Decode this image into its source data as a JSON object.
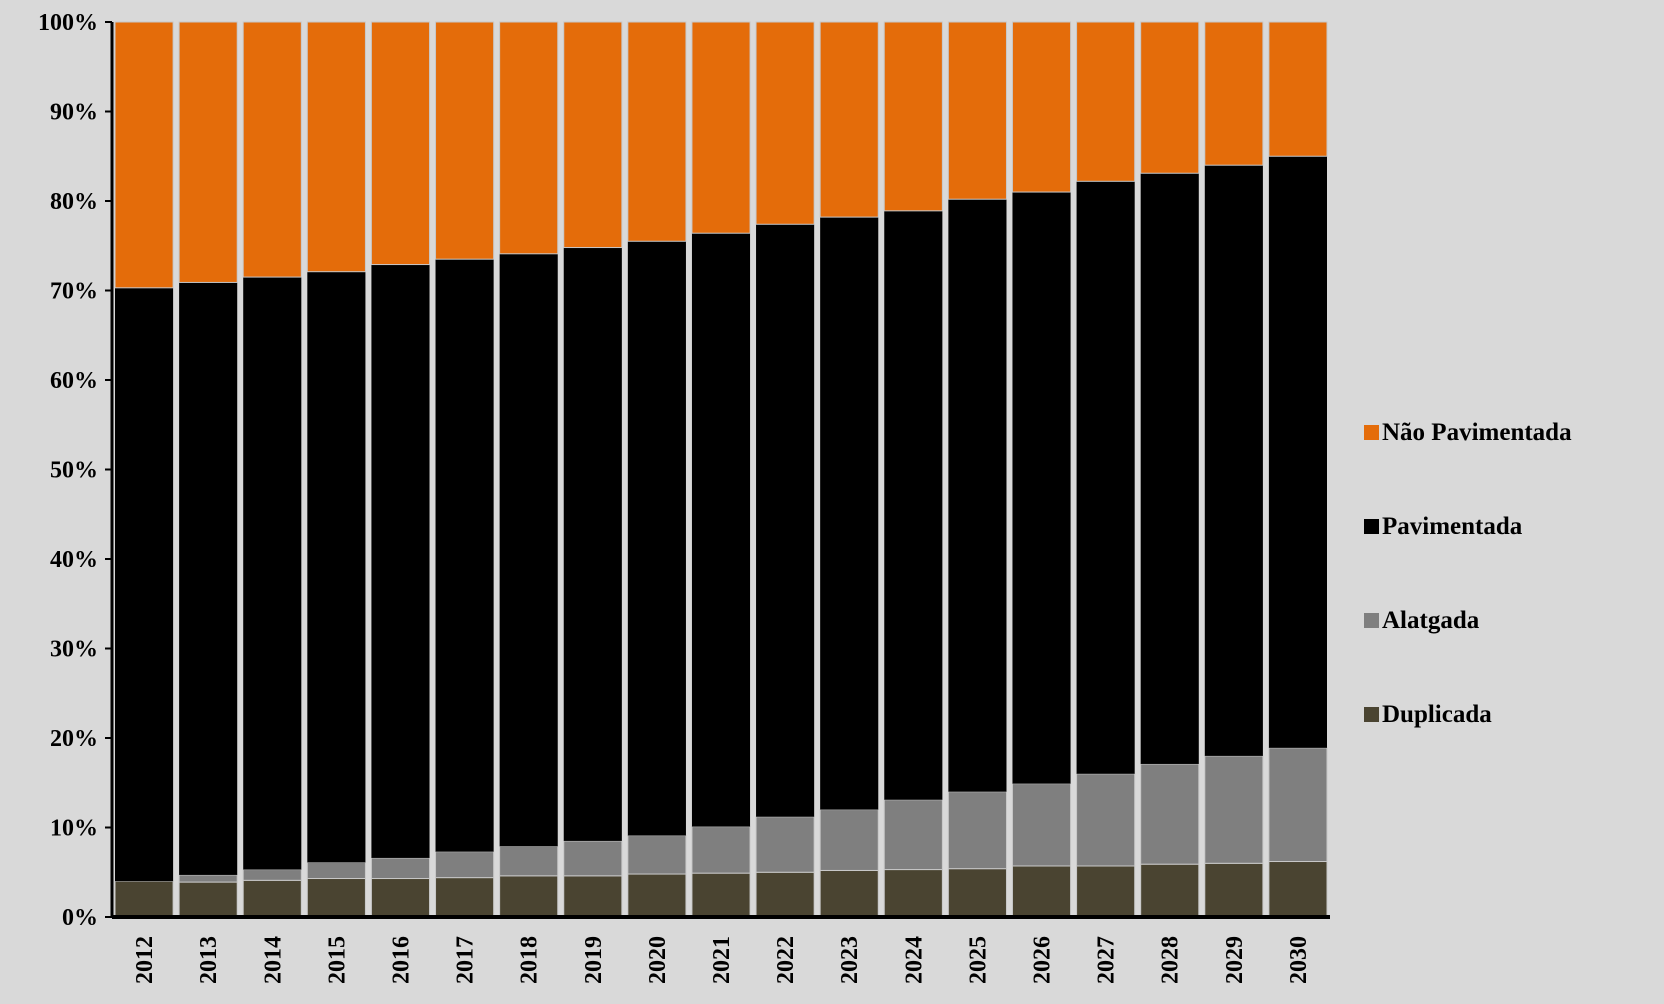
{
  "chart_data": {
    "type": "bar",
    "stacked": true,
    "percent": true,
    "title": "",
    "xlabel": "",
    "ylabel": "",
    "ylim": [
      0,
      100
    ],
    "yticks": [
      "0%",
      "10%",
      "20%",
      "30%",
      "40%",
      "50%",
      "60%",
      "70%",
      "80%",
      "90%",
      "100%"
    ],
    "grid": false,
    "legend_position": "right",
    "categories": [
      "2012",
      "2013",
      "2014",
      "2015",
      "2016",
      "2017",
      "2018",
      "2019",
      "2020",
      "2021",
      "2022",
      "2023",
      "2024",
      "2025",
      "2026",
      "2027",
      "2028",
      "2029",
      "2030"
    ],
    "series": [
      {
        "name": "Duplicada",
        "color": "#4a4431",
        "values": [
          4.0,
          3.9,
          4.1,
          4.3,
          4.3,
          4.4,
          4.6,
          4.6,
          4.8,
          4.9,
          5.0,
          5.2,
          5.3,
          5.4,
          5.7,
          5.7,
          5.9,
          6.0,
          6.2
        ]
      },
      {
        "name": "Alatgada",
        "color": "#7f7f7f",
        "values": [
          0.0,
          0.8,
          1.2,
          1.8,
          2.3,
          2.9,
          3.3,
          3.9,
          4.3,
          5.2,
          6.2,
          6.8,
          7.8,
          8.6,
          9.2,
          10.3,
          11.2,
          12.0,
          12.7
        ]
      },
      {
        "name": "Pavimentada",
        "color": "#000000",
        "values": [
          66.3,
          66.2,
          66.2,
          66.0,
          66.3,
          66.2,
          66.2,
          66.3,
          66.4,
          66.3,
          66.2,
          66.2,
          65.8,
          66.2,
          66.1,
          66.2,
          66.0,
          66.0,
          66.1
        ]
      },
      {
        "name": "Não Pavimentada",
        "color": "#e46c0a",
        "values": [
          29.7,
          29.1,
          28.5,
          27.9,
          27.1,
          26.5,
          25.9,
          25.2,
          24.5,
          23.6,
          22.6,
          21.8,
          21.1,
          19.8,
          19.0,
          17.8,
          16.9,
          16.0,
          15.0
        ]
      }
    ],
    "legend_order": [
      "Não Pavimentada",
      "Pavimentada",
      "Alatgada",
      "Duplicada"
    ]
  }
}
